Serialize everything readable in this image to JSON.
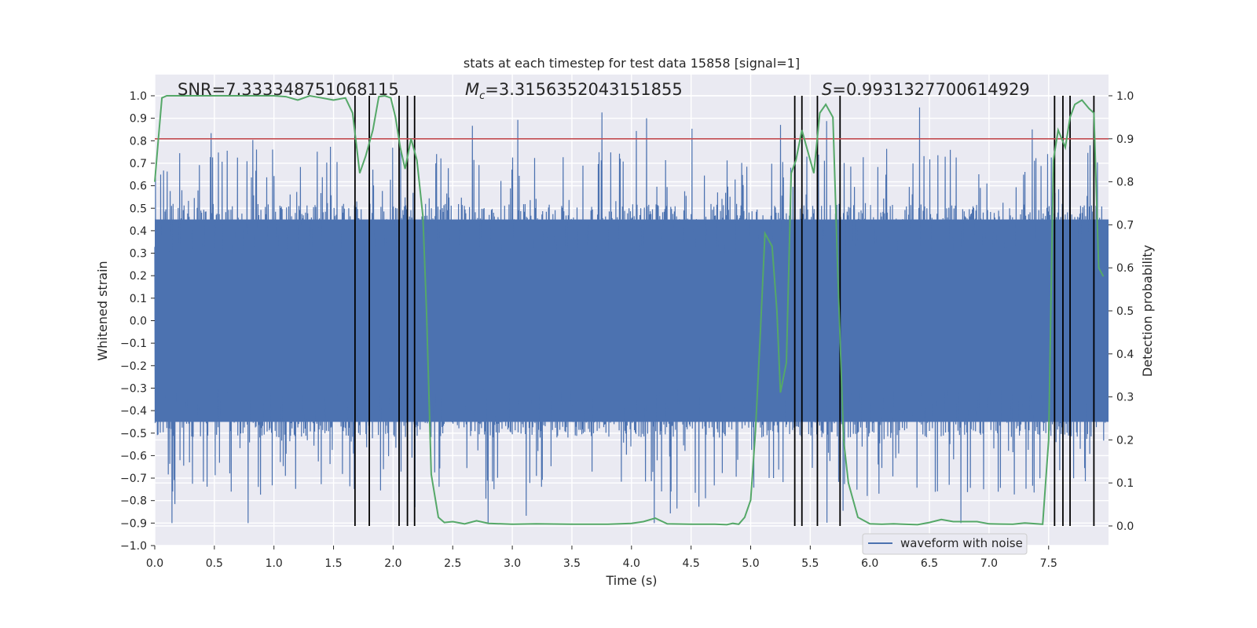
{
  "chart_data": {
    "type": "line",
    "title": "stats at each timestep for test data 15858 [signal=1]",
    "xlabel": "Time (s)",
    "ylabel": "Whitened strain",
    "y2label": "Detection probability",
    "xlim": [
      0.0,
      8.0
    ],
    "ylim": [
      -1.0,
      1.0
    ],
    "y2lim": [
      0.0,
      1.0
    ],
    "x_ticks": [
      "0.0",
      "0.5",
      "1.0",
      "1.5",
      "2.0",
      "2.5",
      "3.0",
      "3.5",
      "4.0",
      "4.5",
      "5.0",
      "5.5",
      "6.0",
      "6.5",
      "7.0",
      "7.5"
    ],
    "y_ticks": [
      "1.0",
      "0.9",
      "0.8",
      "0.7",
      "0.6",
      "0.5",
      "0.4",
      "0.3",
      "0.2",
      "0.1",
      "0.0",
      "−0.1",
      "−0.2",
      "−0.3",
      "−0.4",
      "−0.5",
      "−0.6",
      "−0.7",
      "−0.8",
      "−0.9",
      "−1.0"
    ],
    "y2_ticks": [
      "1.0",
      "0.9",
      "0.8",
      "0.7",
      "0.6",
      "0.5",
      "0.4",
      "0.3",
      "0.2",
      "0.1",
      "0.0"
    ],
    "annotations": {
      "snr": "SNR=7.333348751068115",
      "mc_symbol": "M",
      "mc_sub": "c",
      "mc_value": "=3.3156352043151855",
      "s_symbol": "S",
      "s_value": "=0.9931327700614929"
    },
    "legend": {
      "placement": "lower-right",
      "entries": [
        "waveform with noise"
      ]
    },
    "grid": true,
    "threshold_y": 0.9,
    "event_lines_x": [
      1.68,
      1.8,
      2.05,
      2.12,
      2.18,
      5.37,
      5.43,
      5.56,
      5.75,
      7.55,
      7.62,
      7.68,
      7.88
    ],
    "waveform": {
      "name": "waveform with noise",
      "color": "#4c72b0",
      "envelope": {
        "upper_typical": 0.45,
        "lower_typical": -0.45,
        "peak_max": 1.0,
        "peak_min": -0.9
      }
    },
    "probability": {
      "color": "#55a868",
      "x": [
        0.0,
        0.03,
        0.06,
        0.1,
        0.2,
        0.3,
        0.4,
        0.6,
        0.8,
        1.0,
        1.1,
        1.2,
        1.3,
        1.4,
        1.5,
        1.6,
        1.66,
        1.72,
        1.77,
        1.83,
        1.88,
        1.93,
        1.98,
        2.02,
        2.06,
        2.1,
        2.15,
        2.2,
        2.25,
        2.28,
        2.32,
        2.38,
        2.43,
        2.5,
        2.6,
        2.7,
        2.8,
        3.0,
        3.2,
        3.5,
        3.8,
        4.0,
        4.1,
        4.2,
        4.3,
        4.5,
        4.7,
        4.8,
        4.85,
        4.9,
        4.95,
        5.0,
        5.04,
        5.08,
        5.12,
        5.18,
        5.22,
        5.25,
        5.3,
        5.34,
        5.38,
        5.43,
        5.48,
        5.53,
        5.58,
        5.63,
        5.69,
        5.73,
        5.78,
        5.82,
        5.9,
        6.0,
        6.1,
        6.2,
        6.4,
        6.5,
        6.6,
        6.7,
        6.8,
        6.9,
        7.0,
        7.2,
        7.3,
        7.45,
        7.5,
        7.54,
        7.58,
        7.64,
        7.68,
        7.72,
        7.78,
        7.84,
        7.88,
        7.92,
        7.96
      ],
      "y": [
        0.8,
        0.9,
        0.995,
        1.0,
        1.0,
        1.0,
        1.0,
        1.0,
        1.0,
        1.0,
        0.998,
        0.99,
        1.0,
        0.995,
        0.99,
        0.995,
        0.96,
        0.82,
        0.86,
        0.92,
        0.998,
        1.0,
        0.995,
        0.95,
        0.88,
        0.83,
        0.9,
        0.85,
        0.72,
        0.5,
        0.12,
        0.02,
        0.008,
        0.01,
        0.005,
        0.012,
        0.006,
        0.004,
        0.005,
        0.004,
        0.004,
        0.006,
        0.01,
        0.018,
        0.005,
        0.004,
        0.004,
        0.003,
        0.006,
        0.004,
        0.02,
        0.06,
        0.22,
        0.44,
        0.68,
        0.65,
        0.5,
        0.31,
        0.38,
        0.82,
        0.85,
        0.92,
        0.87,
        0.82,
        0.96,
        0.98,
        0.95,
        0.6,
        0.2,
        0.1,
        0.02,
        0.005,
        0.004,
        0.005,
        0.003,
        0.008,
        0.015,
        0.01,
        0.01,
        0.01,
        0.005,
        0.004,
        0.007,
        0.004,
        0.2,
        0.85,
        0.92,
        0.88,
        0.95,
        0.98,
        0.99,
        0.97,
        0.96,
        0.6,
        0.58
      ]
    },
    "threshold_color": "#c44e52"
  }
}
